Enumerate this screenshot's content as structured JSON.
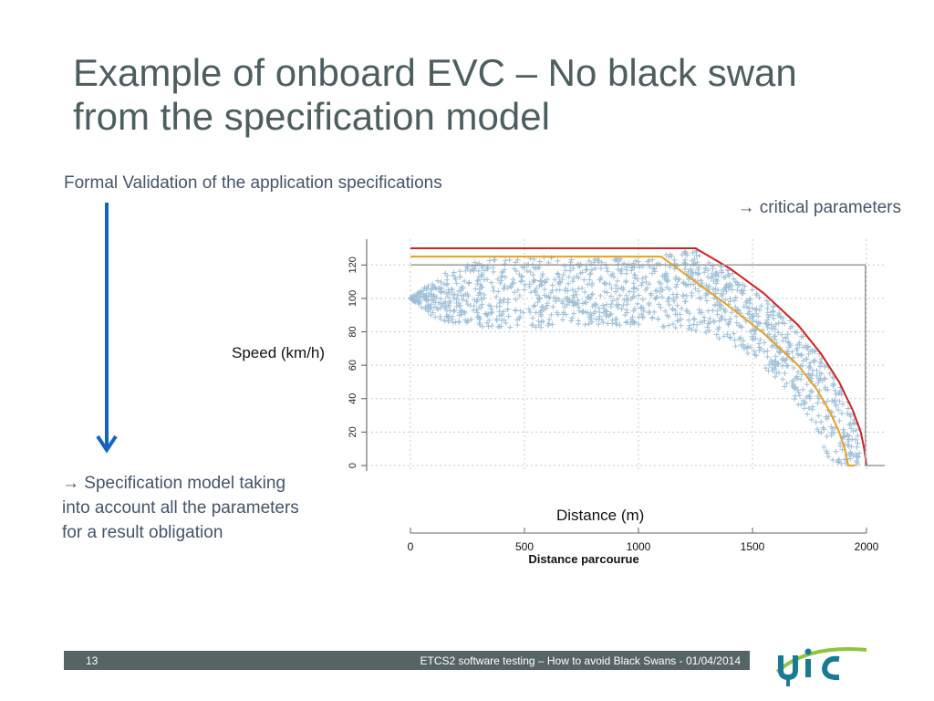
{
  "slide": {
    "title": "Example of onboard EVC – No black swan from the specification model",
    "subtitle": "Formal Validation of the application specifications",
    "critical_note": "→ critical parameters",
    "spec_note": "→ Specification model taking into account all the parameters for a result obligation",
    "speed_label": "Speed (km/h)",
    "distance_label": "Distance (m)"
  },
  "footer": {
    "page_number": "13",
    "text": "ETCS2 software testing – How to avoid Black Swans - 01/04/2014"
  },
  "logo": {
    "text": "uic"
  },
  "colors": {
    "title": "#4d5e60",
    "body_text": "#44546a",
    "arrow": "#1565c0",
    "footer_bar": "#566466",
    "scatter": "#8fb6d3",
    "red_curve": "#d42020",
    "orange_curve": "#e8a020",
    "gray_curve": "#9a9a9a",
    "logo_teal": "#1a7a96",
    "logo_green": "#8cc63f"
  },
  "chart_data": {
    "type": "scatter",
    "xlabel": "Distance parcourue",
    "ylabel": "",
    "xlim": [
      0,
      2000
    ],
    "ylim": [
      0,
      130
    ],
    "x_ticks": [
      "0",
      "500",
      "1000",
      "1500",
      "2000"
    ],
    "y_ticks": [
      "0",
      "20",
      "40",
      "60",
      "80",
      "100",
      "120"
    ],
    "grid": true,
    "series": [
      {
        "style": "line",
        "color": "#d42020",
        "x": [
          0,
          1250,
          1400,
          1550,
          1700,
          1800,
          1880,
          1940,
          1975,
          1990,
          2000
        ],
        "y": [
          130,
          130,
          118,
          103,
          84,
          67,
          50,
          33,
          20,
          10,
          0
        ]
      },
      {
        "style": "line",
        "color": "#e8a020",
        "x": [
          0,
          1100,
          1250,
          1400,
          1550,
          1700,
          1780,
          1840,
          1880,
          1905,
          1920,
          1950
        ],
        "y": [
          125,
          125,
          110,
          95,
          79,
          60,
          46,
          32,
          20,
          10,
          0,
          0
        ]
      },
      {
        "style": "line",
        "color": "#9a9a9a",
        "x": [
          0,
          1995,
          1995,
          2080
        ],
        "y": [
          120,
          120,
          0,
          0
        ]
      },
      {
        "style": "points",
        "color": "#8fb6d3",
        "description_band": "envelope",
        "upper": {
          "x": [
            0,
            100,
            300,
            500,
            800,
            1000,
            1250,
            1400,
            1550,
            1700,
            1800,
            1900,
            1970
          ],
          "y": [
            100,
            112,
            124,
            125,
            124,
            124,
            130,
            117,
            101,
            83,
            66,
            45,
            22
          ]
        },
        "lower": {
          "x": [
            0,
            100,
            300,
            500,
            800,
            1000,
            1200,
            1400,
            1550,
            1650,
            1750,
            1800,
            1850
          ],
          "y": [
            100,
            88,
            82,
            82,
            84,
            84,
            82,
            74,
            59,
            45,
            28,
            15,
            0
          ]
        }
      }
    ]
  }
}
